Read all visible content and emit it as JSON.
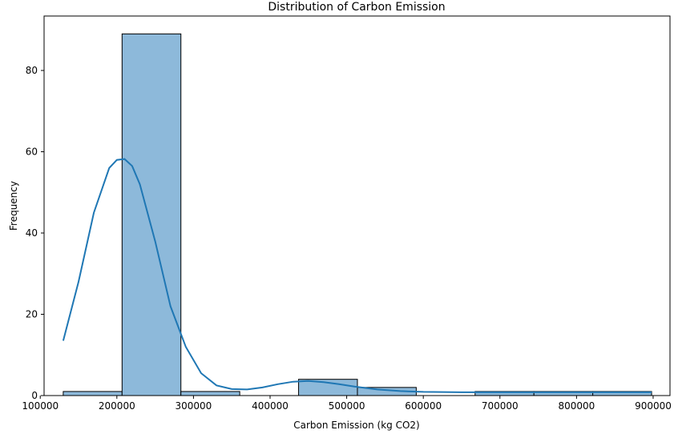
{
  "chart_data": {
    "type": "histogram",
    "title": "Distribution of Carbon Emission",
    "xlabel": "Carbon Emission (kg CO2)",
    "ylabel": "Frequency",
    "xlim": [
      105000,
      922000
    ],
    "ylim": [
      0,
      93.4
    ],
    "xticks": [
      100000,
      200000,
      300000,
      400000,
      500000,
      600000,
      700000,
      800000,
      900000
    ],
    "xtick_labels": [
      "100000",
      "200000",
      "300000",
      "400000",
      "500000",
      "600000",
      "700000",
      "800000",
      "900000"
    ],
    "yticks": [
      0,
      20,
      40,
      60,
      80
    ],
    "ytick_labels": [
      "0",
      "20",
      "40",
      "60",
      "80"
    ],
    "bins": [
      {
        "x0": 130000,
        "x1": 206800,
        "count": 1
      },
      {
        "x0": 206800,
        "x1": 283600,
        "count": 89
      },
      {
        "x0": 283600,
        "x1": 360400,
        "count": 1
      },
      {
        "x0": 360400,
        "x1": 437200,
        "count": 0
      },
      {
        "x0": 437200,
        "x1": 514000,
        "count": 4
      },
      {
        "x0": 514000,
        "x1": 590800,
        "count": 2
      },
      {
        "x0": 590800,
        "x1": 667600,
        "count": 0
      },
      {
        "x0": 667600,
        "x1": 744400,
        "count": 1
      },
      {
        "x0": 744400,
        "x1": 821200,
        "count": 1
      },
      {
        "x0": 821200,
        "x1": 898000,
        "count": 1
      }
    ],
    "kde": {
      "x": [
        130000,
        150000,
        170000,
        190000,
        200000,
        210000,
        220000,
        230000,
        250000,
        270000,
        290000,
        310000,
        330000,
        350000,
        370000,
        390000,
        410000,
        430000,
        450000,
        470000,
        490000,
        510000,
        540000,
        570000,
        600000,
        650000,
        700000,
        750000,
        800000,
        850000,
        898000
      ],
      "y": [
        13.5,
        28,
        45,
        56,
        58,
        58.2,
        56.5,
        52,
        38,
        22,
        12,
        5.5,
        2.5,
        1.6,
        1.5,
        2.0,
        2.8,
        3.4,
        3.6,
        3.3,
        2.8,
        2.2,
        1.5,
        1.1,
        0.9,
        0.8,
        0.8,
        0.8,
        0.8,
        0.8,
        0.8
      ]
    },
    "bar_color": "#8db9da",
    "bar_edge_color": "#000000",
    "kde_color": "#1f77b4",
    "grid": false
  }
}
